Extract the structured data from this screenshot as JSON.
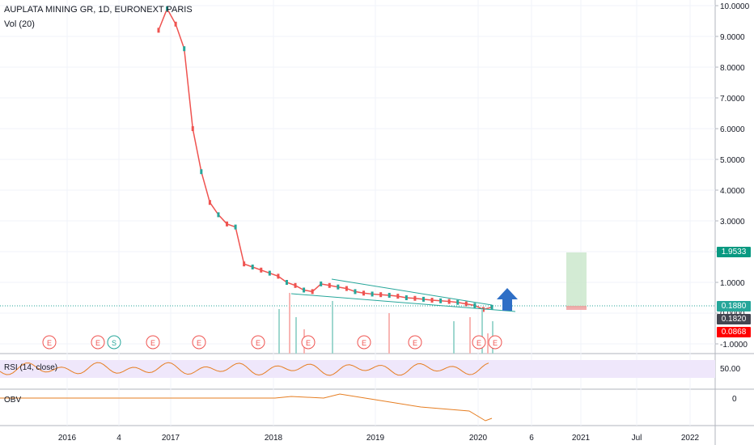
{
  "header": {
    "title": "AUPLATA MINING GR, 1D, EURONEXT PARIS",
    "vol_label": "Vol (20)"
  },
  "price_tags": [
    {
      "value": "1.9533",
      "color": "#089981"
    },
    {
      "value": "0.1880",
      "color": "#26a69a"
    },
    {
      "value": "0.1820",
      "color": "#434651"
    },
    {
      "value": "0.0868",
      "color": "#ff0000"
    }
  ],
  "rsi": {
    "label": "RSI (14, close)",
    "tick": "50.00"
  },
  "obv": {
    "label": "OBV",
    "tick": "0"
  },
  "events": [
    "E",
    "E",
    "S",
    "E",
    "E",
    "E",
    "E",
    "E",
    "E",
    "E",
    "E",
    "E"
  ],
  "chart_data": {
    "type": "line",
    "title": "AUPLATA MINING GR, 1D, EURONEXT PARIS",
    "y_ticks": [
      "10.0000",
      "9.0000",
      "8.0000",
      "7.0000",
      "6.0000",
      "5.0000",
      "4.0000",
      "3.0000",
      "2.0000",
      "1.0000",
      "0.0000",
      "-1.0000"
    ],
    "x_ticks": [
      "2016",
      "4",
      "2017",
      "2018",
      "2019",
      "2020",
      "6",
      "2021",
      "Jul",
      "2022"
    ],
    "ylim": [
      -1,
      10
    ],
    "series": [
      {
        "x": [
          "2016-12",
          "2017-01",
          "2017-02",
          "2017-03",
          "2017-04",
          "2017-05",
          "2017-06",
          "2017-07",
          "2017-08",
          "2017-09",
          "2017-10",
          "2017-11",
          "2017-12",
          "2018-01",
          "2018-02",
          "2018-03",
          "2018-04",
          "2018-05",
          "2018-06",
          "2018-07",
          "2018-08",
          "2018-09",
          "2018-10",
          "2018-11",
          "2018-12",
          "2019-01",
          "2019-02",
          "2019-03",
          "2019-04",
          "2019-05",
          "2019-06",
          "2019-07",
          "2019-08",
          "2019-09",
          "2019-10",
          "2019-11",
          "2019-12",
          "2020-01",
          "2020-02",
          "2020-03"
        ],
        "values": [
          9.2,
          9.9,
          9.4,
          8.6,
          6.0,
          4.6,
          3.6,
          3.2,
          2.9,
          2.8,
          1.6,
          1.5,
          1.4,
          1.3,
          1.2,
          1.0,
          0.9,
          0.75,
          0.7,
          0.95,
          0.9,
          0.85,
          0.8,
          0.7,
          0.65,
          0.62,
          0.6,
          0.58,
          0.55,
          0.5,
          0.48,
          0.45,
          0.42,
          0.4,
          0.38,
          0.35,
          0.3,
          0.25,
          0.12,
          0.19
        ]
      }
    ]
  }
}
